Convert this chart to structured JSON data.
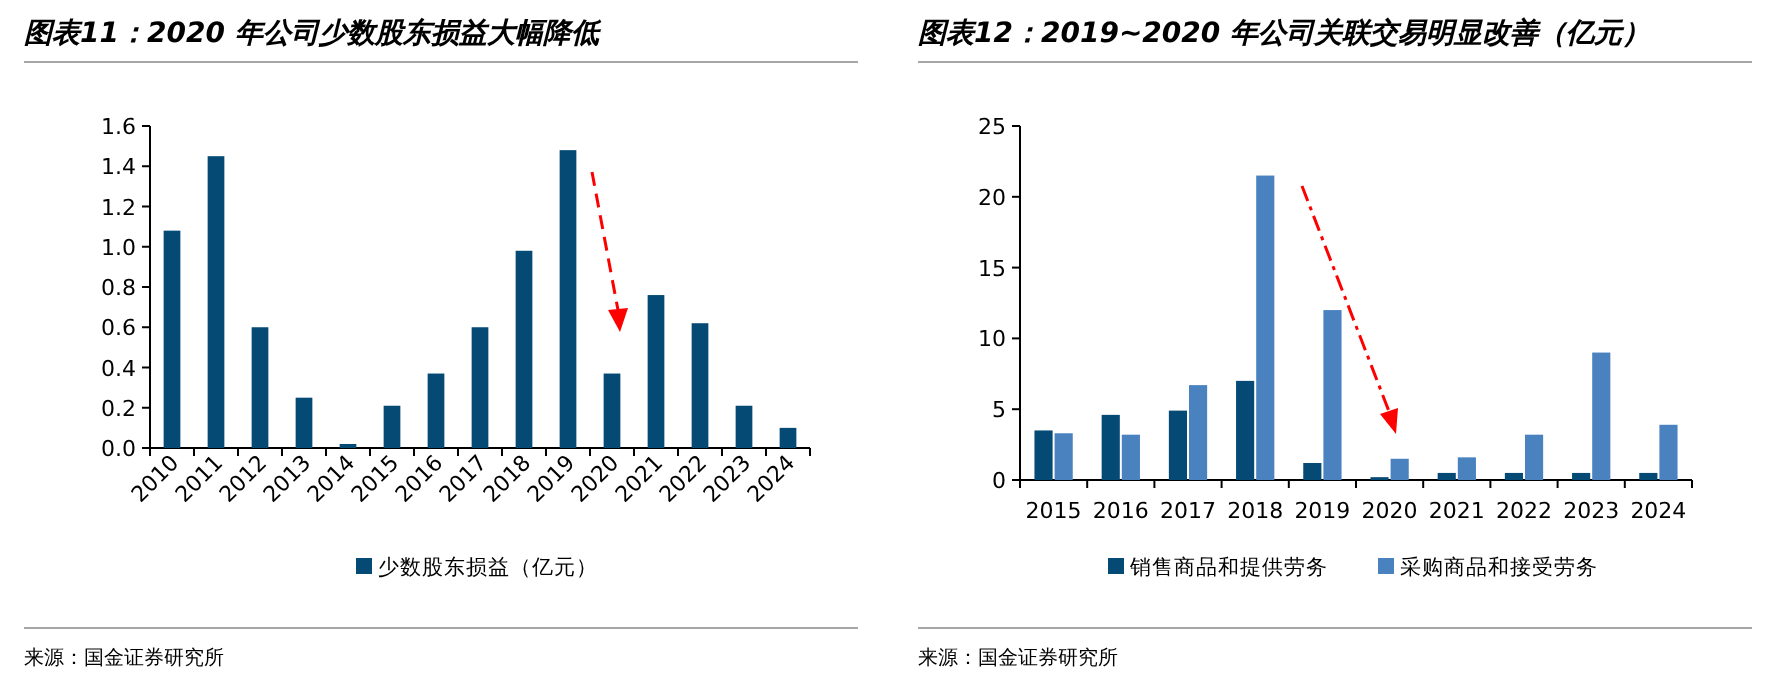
{
  "chart_data": [
    {
      "type": "bar",
      "title": "图表11：2020 年公司少数股东损益大幅降低",
      "categories": [
        "2010",
        "2011",
        "2012",
        "2013",
        "2014",
        "2015",
        "2016",
        "2017",
        "2018",
        "2019",
        "2020",
        "2021",
        "2022",
        "2023",
        "2024"
      ],
      "series": [
        {
          "name": "少数股东损益（亿元）",
          "color": "#044a74",
          "values": [
            1.08,
            1.45,
            0.6,
            0.25,
            0.02,
            0.21,
            0.37,
            0.6,
            0.98,
            1.48,
            0.37,
            0.76,
            0.62,
            0.21,
            0.1
          ]
        }
      ],
      "ylim": [
        0,
        1.6
      ],
      "yticks": [
        {
          "value": 0,
          "label": "0.0"
        },
        0.2,
        0.4,
        0.6,
        0.8,
        {
          "value": 1,
          "label": "1.0"
        },
        1.2,
        1.4,
        1.6
      ],
      "legend": "bottom",
      "annotations": [
        "来源：国金证券研究所"
      ]
    },
    {
      "type": "bar",
      "title": "图表12：2019~2020 年公司关联交易明显改善（亿元）",
      "categories": [
        "2015",
        "2016",
        "2017",
        "2018",
        "2019",
        "2020",
        "2021",
        "2022",
        "2023",
        "2024"
      ],
      "series": [
        {
          "name": "销售商品和提供劳务",
          "color": "#044a74",
          "values": [
            3.5,
            4.6,
            4.9,
            7.0,
            1.2,
            0.2,
            0.5,
            0.5,
            0.5,
            0.5
          ]
        },
        {
          "name": "采购商品和接受劳务",
          "color": "#4a81bf",
          "values": [
            3.3,
            3.2,
            6.7,
            21.5,
            12.0,
            1.5,
            1.6,
            3.2,
            9.0,
            3.9
          ]
        }
      ],
      "ylim": [
        0,
        25
      ],
      "yticks": [
        0,
        5,
        10,
        15,
        20,
        25
      ],
      "legend": "bottom",
      "annotations": [
        "来源：国金证券研究所"
      ]
    }
  ]
}
